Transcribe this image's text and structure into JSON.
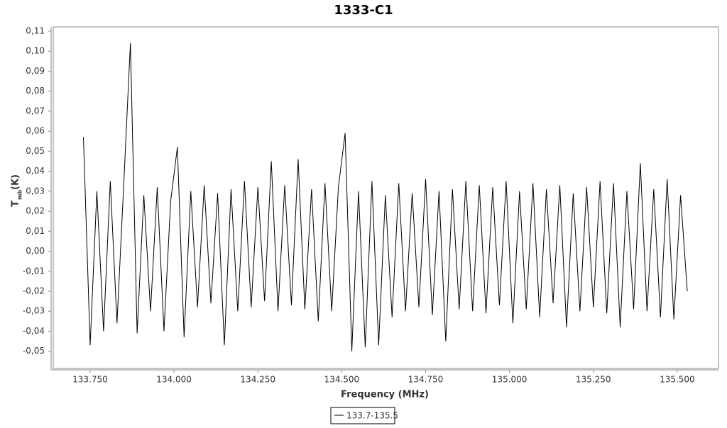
{
  "chart_data": {
    "type": "line",
    "title": "1333-C1",
    "x_label": "Frequency (MHz)",
    "y_label": {
      "main": "T",
      "sub": "mb",
      "unit": "(K)"
    },
    "x": [
      133.73,
      133.75,
      133.77,
      133.79,
      133.81,
      133.83,
      133.85,
      133.87,
      133.89,
      133.91,
      133.93,
      133.95,
      133.97,
      133.99,
      134.01,
      134.03,
      134.05,
      134.07,
      134.09,
      134.11,
      134.13,
      134.15,
      134.17,
      134.19,
      134.21,
      134.23,
      134.25,
      134.27,
      134.29,
      134.31,
      134.33,
      134.35,
      134.37,
      134.39,
      134.41,
      134.43,
      134.45,
      134.47,
      134.49,
      134.51,
      134.53,
      134.55,
      134.57,
      134.59,
      134.61,
      134.63,
      134.65,
      134.67,
      134.69,
      134.71,
      134.73,
      134.75,
      134.77,
      134.79,
      134.81,
      134.83,
      134.85,
      134.87,
      134.89,
      134.91,
      134.93,
      134.95,
      134.97,
      134.99,
      135.01,
      135.03,
      135.05,
      135.07,
      135.09,
      135.11,
      135.13,
      135.15,
      135.17,
      135.19,
      135.21,
      135.23,
      135.25,
      135.27,
      135.29,
      135.31,
      135.33,
      135.35,
      135.37,
      135.39,
      135.41,
      135.43,
      135.45,
      135.47,
      135.49,
      135.51,
      135.53
    ],
    "series": [
      {
        "name": "133.7-135.5",
        "color": "#000000",
        "values": [
          0.057,
          -0.047,
          0.03,
          -0.04,
          0.035,
          -0.036,
          0.033,
          0.104,
          -0.041,
          0.028,
          -0.03,
          0.032,
          -0.04,
          0.025,
          0.052,
          -0.043,
          0.03,
          -0.028,
          0.033,
          -0.026,
          0.029,
          -0.047,
          0.031,
          -0.03,
          0.035,
          -0.028,
          0.032,
          -0.025,
          0.045,
          -0.03,
          0.033,
          -0.027,
          0.046,
          -0.029,
          0.031,
          -0.035,
          0.034,
          -0.03,
          0.032,
          0.059,
          -0.05,
          0.03,
          -0.048,
          0.035,
          -0.047,
          0.028,
          -0.033,
          0.034,
          -0.03,
          0.029,
          -0.028,
          0.036,
          -0.032,
          0.03,
          -0.045,
          0.031,
          -0.029,
          0.035,
          -0.03,
          0.033,
          -0.031,
          0.032,
          -0.027,
          0.035,
          -0.036,
          0.03,
          -0.029,
          0.034,
          -0.033,
          0.031,
          -0.026,
          0.033,
          -0.038,
          0.029,
          -0.03,
          0.032,
          -0.028,
          0.035,
          -0.031,
          0.034,
          -0.038,
          0.03,
          -0.029,
          0.044,
          -0.03,
          0.031,
          -0.033,
          0.036,
          -0.034,
          0.028,
          -0.02
        ]
      }
    ],
    "xlim": [
      133.64,
      135.623
    ],
    "ylim": [
      -0.0586,
      0.1121
    ],
    "xticks": [
      {
        "value": 133.75,
        "label": "133.750"
      },
      {
        "value": 134.0,
        "label": "134.000"
      },
      {
        "value": 134.25,
        "label": "134.250"
      },
      {
        "value": 134.5,
        "label": "134.500"
      },
      {
        "value": 134.75,
        "label": "134.750"
      },
      {
        "value": 135.0,
        "label": "135.000"
      },
      {
        "value": 135.25,
        "label": "135.250"
      },
      {
        "value": 135.5,
        "label": "135.500"
      }
    ],
    "yticks": [
      {
        "value": -0.05,
        "label": "-0,05"
      },
      {
        "value": -0.04,
        "label": "-0,04"
      },
      {
        "value": -0.03,
        "label": "-0,03"
      },
      {
        "value": -0.02,
        "label": "-0,02"
      },
      {
        "value": -0.01,
        "label": "-0,01"
      },
      {
        "value": 0,
        "label": "0,00"
      },
      {
        "value": 0.01,
        "label": "0,01"
      },
      {
        "value": 0.02,
        "label": "0,02"
      },
      {
        "value": 0.03,
        "label": "0,03"
      },
      {
        "value": 0.04,
        "label": "0,04"
      },
      {
        "value": 0.05,
        "label": "0,05"
      },
      {
        "value": 0.06,
        "label": "0,06"
      },
      {
        "value": 0.07,
        "label": "0,07"
      },
      {
        "value": 0.08,
        "label": "0,08"
      },
      {
        "value": 0.09,
        "label": "0,09"
      },
      {
        "value": 0.1,
        "label": "0,10"
      },
      {
        "value": 0.11,
        "label": "0,11"
      }
    ]
  }
}
